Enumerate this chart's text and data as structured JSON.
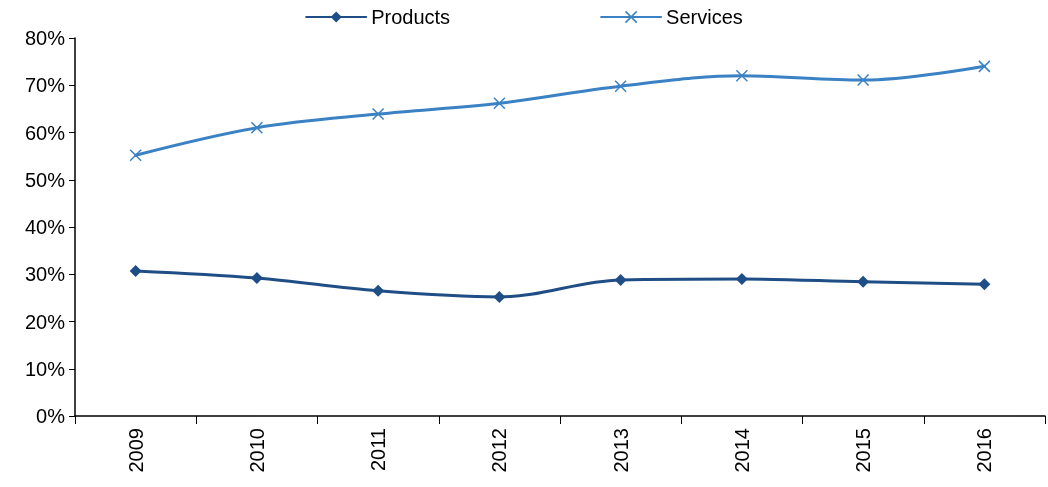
{
  "chart_data": {
    "type": "line",
    "categories": [
      "2009",
      "2010",
      "2011",
      "2012",
      "2013",
      "2014",
      "2015",
      "2016"
    ],
    "series": [
      {
        "name": "Products",
        "color": "#1f4e86",
        "marker": "diamond",
        "values": [
          30.7,
          29.2,
          26.5,
          25.2,
          28.8,
          29.0,
          28.4,
          27.9
        ]
      },
      {
        "name": "Services",
        "color": "#3a82c4",
        "marker": "cross",
        "values": [
          55.2,
          61.0,
          63.9,
          66.2,
          69.8,
          72.0,
          71.1,
          74.0
        ]
      }
    ],
    "ylim": [
      0,
      80
    ],
    "yticks": [
      {
        "value": 0,
        "label": "0%"
      },
      {
        "value": 10,
        "label": "10%"
      },
      {
        "value": 20,
        "label": "20%"
      },
      {
        "value": 30,
        "label": "30%"
      },
      {
        "value": 40,
        "label": "40%"
      },
      {
        "value": 50,
        "label": "50%"
      },
      {
        "value": 60,
        "label": "60%"
      },
      {
        "value": 70,
        "label": "70%"
      },
      {
        "value": 80,
        "label": "80%"
      }
    ],
    "grid": false,
    "legend": "top",
    "line_style": "solid"
  }
}
